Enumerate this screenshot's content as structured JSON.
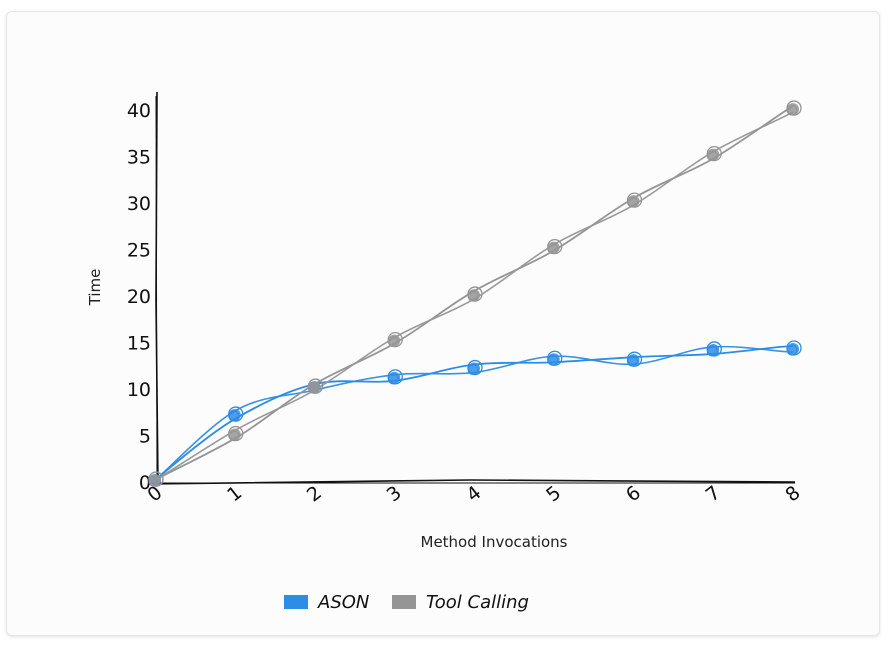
{
  "chart_data": {
    "type": "line",
    "xlabel": "Method Invocations",
    "ylabel": "Time",
    "x": [
      0,
      1,
      2,
      3,
      4,
      5,
      6,
      7,
      8
    ],
    "xlim": [
      0,
      8
    ],
    "ylim": [
      0,
      42
    ],
    "yticks": [
      0,
      5,
      10,
      15,
      20,
      25,
      30,
      35,
      40
    ],
    "legend_position": "bottom-center",
    "series": [
      {
        "name": "ASON",
        "color": "#2d8ce6",
        "values": [
          0.2,
          7.2,
          10.2,
          11.2,
          12.2,
          13.2,
          13.1,
          14.2,
          14.3
        ]
      },
      {
        "name": "Tool Calling",
        "color": "#959595",
        "values": [
          0.2,
          5.1,
          10.2,
          15.2,
          20.1,
          25.2,
          30.2,
          35.2,
          40.1
        ]
      }
    ]
  }
}
